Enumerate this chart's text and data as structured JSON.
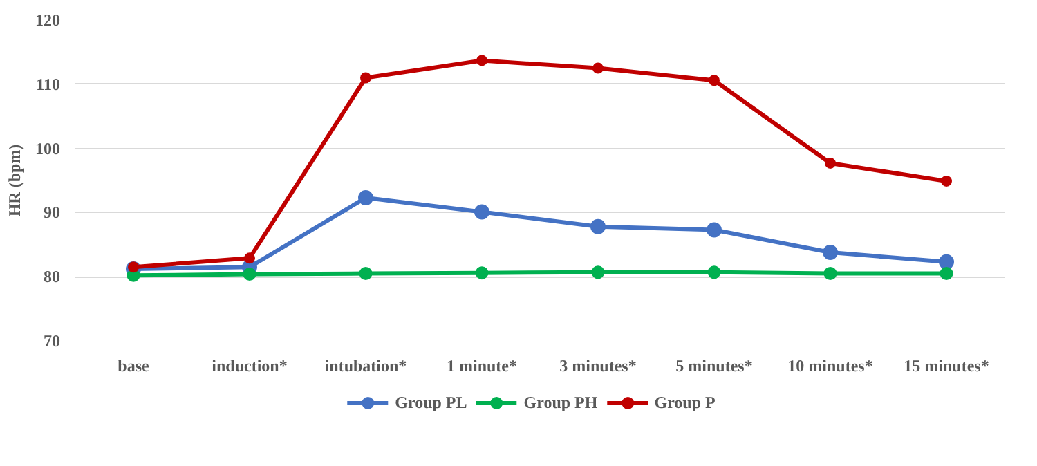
{
  "chart_data": {
    "type": "line",
    "ylabel": "HR (bpm)",
    "categories": [
      "base",
      "induction*",
      "intubation*",
      "1 minute*",
      "3 minutes*",
      "5 minutes*",
      "10 minutes*",
      "15 minutes*"
    ],
    "series": [
      {
        "name": "Group PL",
        "color": "#4472c4",
        "values": [
          81.2,
          81.5,
          92.3,
          90.1,
          87.8,
          87.3,
          83.8,
          82.3
        ]
      },
      {
        "name": "Group PH",
        "color": "#00b050",
        "values": [
          80.2,
          80.4,
          80.5,
          80.6,
          80.7,
          80.7,
          80.5,
          80.5
        ]
      },
      {
        "name": "Group P",
        "color": "#c00000",
        "values": [
          81.5,
          82.9,
          111.0,
          113.7,
          112.5,
          110.6,
          97.7,
          94.9
        ]
      }
    ],
    "ylim": [
      70,
      120
    ],
    "yticks": [
      70,
      80,
      90,
      100,
      110,
      120
    ],
    "grid": "y",
    "legend": "bottom",
    "marker": "circle",
    "line_style": "solid"
  }
}
